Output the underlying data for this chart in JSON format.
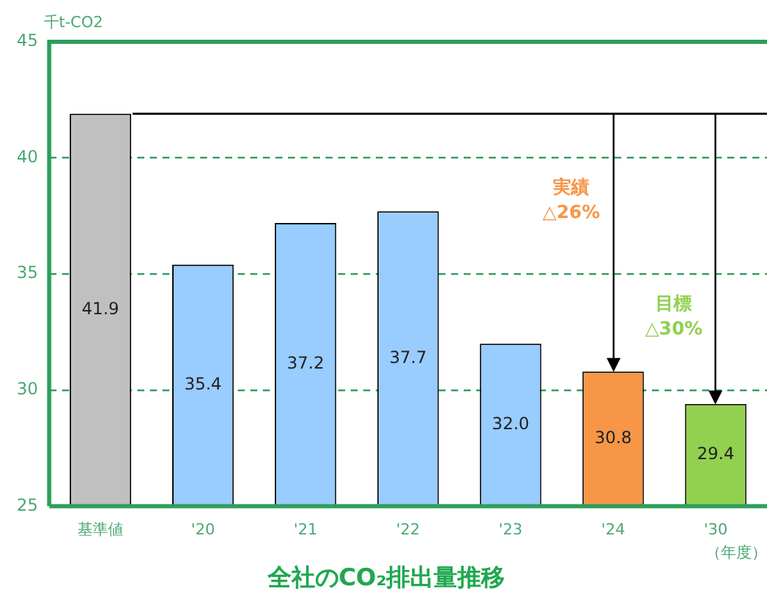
{
  "chart_data": {
    "type": "bar",
    "title": "全社のCO₂排出量推移",
    "xlabel": "（年度）",
    "ylabel": "千t-CO2",
    "categories": [
      "基準値",
      "'20",
      "'21",
      "'22",
      "'23",
      "'24",
      "'30"
    ],
    "values": [
      41.9,
      35.4,
      37.2,
      37.7,
      32.0,
      30.8,
      29.4
    ],
    "colors": [
      "#c0c0c0",
      "#99ccff",
      "#99ccff",
      "#99ccff",
      "#99ccff",
      "#f79646",
      "#92d050"
    ],
    "value_labels": [
      "41.9",
      "35.4",
      "37.2",
      "37.7",
      "32.0",
      "30.8",
      "29.4"
    ],
    "ylim": [
      25,
      45
    ],
    "yticks": [
      25,
      30,
      35,
      40,
      45
    ],
    "grid": "y",
    "legend": false,
    "ref_lines": [
      {
        "axis": "y",
        "value": 41.9,
        "color": "#000000"
      }
    ],
    "annotations": [
      "実績\n△26%",
      "目標\n△30%"
    ]
  }
}
